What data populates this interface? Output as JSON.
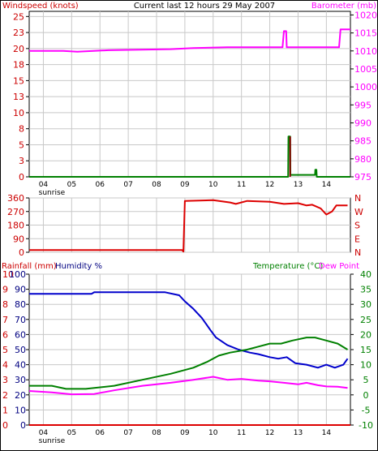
{
  "chart_data": [
    {
      "type": "line",
      "title": "Current last 12 hours 29 May 2007",
      "left_axis_label": "Windspeed (knots)",
      "right_axis_label": "Barometer (mb)",
      "left_ticks": [
        "0",
        "3",
        "5",
        "8",
        "10",
        "13",
        "15",
        "18",
        "20",
        "23",
        "25"
      ],
      "right_ticks": [
        "975",
        "980",
        "985",
        "990",
        "995",
        "1000",
        "1005",
        "1010",
        "1015",
        "1020"
      ],
      "ylim_left": [
        0,
        25.8
      ],
      "ylim_right": [
        975,
        1021
      ],
      "x_ticks": [
        "04",
        "05",
        "06",
        "07",
        "08",
        "09",
        "10",
        "11",
        "12",
        "13",
        "14"
      ],
      "x_note": "sunrise",
      "xlim": [
        3.5,
        14.85
      ],
      "series": [
        {
          "axis": "right",
          "color": "#ff00ff",
          "points": [
            [
              3.5,
              1010
            ],
            [
              4.7,
              1010
            ],
            [
              5.2,
              1009.8
            ],
            [
              6.3,
              1010.2
            ],
            [
              8.5,
              1010.5
            ],
            [
              9.3,
              1010.8
            ],
            [
              10.5,
              1011
            ],
            [
              11.8,
              1011
            ],
            [
              12.45,
              1011
            ],
            [
              12.5,
              1015.5
            ],
            [
              12.58,
              1015.5
            ],
            [
              12.6,
              1011
            ],
            [
              13.5,
              1011
            ],
            [
              14.45,
              1011
            ],
            [
              14.5,
              1016
            ],
            [
              14.85,
              1016
            ]
          ]
        },
        {
          "axis": "left",
          "color": "#008000",
          "points": [
            [
              3.5,
              0
            ],
            [
              12.65,
              0
            ],
            [
              12.66,
              6.3
            ],
            [
              12.72,
              6.3
            ],
            [
              12.73,
              0.3
            ],
            [
              13.6,
              0.3
            ],
            [
              13.61,
              1.1
            ],
            [
              13.65,
              1.1
            ],
            [
              13.66,
              0
            ],
            [
              14.85,
              0
            ]
          ]
        },
        {
          "axis": "left",
          "color": "#880000",
          "points": [
            [
              12.72,
              0
            ],
            [
              12.72,
              6.3
            ]
          ]
        }
      ]
    },
    {
      "type": "line",
      "left_ticks": [
        "0",
        "90",
        "180",
        "270",
        "360"
      ],
      "right_ticks": [
        "N",
        "E",
        "S",
        "W",
        "N"
      ],
      "ylim": [
        0,
        360
      ],
      "xlim": [
        3.5,
        14.85
      ],
      "series": [
        {
          "color": "#dd0000",
          "points": [
            [
              3.5,
              15
            ],
            [
              8.9,
              15
            ],
            [
              8.95,
              5
            ],
            [
              9.0,
              340
            ],
            [
              10.0,
              345
            ],
            [
              10.6,
              330
            ],
            [
              10.8,
              320
            ],
            [
              11.2,
              340
            ],
            [
              12.0,
              335
            ],
            [
              12.5,
              320
            ],
            [
              13.0,
              325
            ],
            [
              13.3,
              310
            ],
            [
              13.5,
              315
            ],
            [
              13.8,
              290
            ],
            [
              14.0,
              250
            ],
            [
              14.2,
              270
            ],
            [
              14.35,
              310
            ],
            [
              14.75,
              310
            ]
          ]
        }
      ]
    },
    {
      "type": "line",
      "labels": [
        "Rainfall (mm)",
        "Humidity %",
        "Temperature (°C)",
        "Dew Point"
      ],
      "rain_ticks": [
        "0",
        "1",
        "2",
        "3",
        "4",
        "5",
        "6",
        "7",
        "8",
        "9",
        "10"
      ],
      "humidity_ticks": [
        "0",
        "10",
        "20",
        "30",
        "40",
        "50",
        "60",
        "70",
        "80",
        "90",
        "100"
      ],
      "temperature_ticks": [
        "-10",
        "-5",
        "0",
        "5",
        "10",
        "15",
        "20",
        "25",
        "30",
        "35",
        "40"
      ],
      "x_ticks": [
        "04",
        "05",
        "06",
        "07",
        "08",
        "09",
        "10",
        "11",
        "12",
        "13",
        "14"
      ],
      "x_note": "sunrise",
      "xlim": [
        3.5,
        14.85
      ],
      "series": [
        {
          "name": "Humidity %",
          "axis": "humidity",
          "color": "#0000cc",
          "points": [
            [
              3.5,
              87
            ],
            [
              5.7,
              87
            ],
            [
              5.8,
              88
            ],
            [
              8.3,
              88
            ],
            [
              8.8,
              86
            ],
            [
              9.0,
              82
            ],
            [
              9.3,
              77
            ],
            [
              9.6,
              71
            ],
            [
              9.9,
              63
            ],
            [
              10.1,
              58
            ],
            [
              10.5,
              53
            ],
            [
              10.9,
              50
            ],
            [
              11.3,
              48
            ],
            [
              11.6,
              47
            ],
            [
              12.0,
              45
            ],
            [
              12.3,
              44
            ],
            [
              12.6,
              45
            ],
            [
              12.9,
              41
            ],
            [
              13.3,
              40
            ],
            [
              13.7,
              38
            ],
            [
              14.0,
              40
            ],
            [
              14.3,
              38
            ],
            [
              14.6,
              40
            ],
            [
              14.75,
              44
            ]
          ]
        },
        {
          "name": "Temperature (°C)",
          "axis": "temperature",
          "color": "#008000",
          "points": [
            [
              3.5,
              3
            ],
            [
              4.3,
              3
            ],
            [
              4.8,
              2
            ],
            [
              5.5,
              2
            ],
            [
              6.5,
              3
            ],
            [
              7.5,
              5
            ],
            [
              8.5,
              7
            ],
            [
              9.3,
              9
            ],
            [
              9.8,
              11
            ],
            [
              10.2,
              13
            ],
            [
              10.6,
              14
            ],
            [
              11.2,
              15
            ],
            [
              11.6,
              16
            ],
            [
              12.0,
              17
            ],
            [
              12.4,
              17
            ],
            [
              12.8,
              18
            ],
            [
              13.3,
              19
            ],
            [
              13.6,
              19
            ],
            [
              14.0,
              18
            ],
            [
              14.4,
              17
            ],
            [
              14.75,
              15
            ]
          ]
        },
        {
          "name": "Dew Point",
          "axis": "temperature",
          "color": "#ff00ff",
          "points": [
            [
              3.5,
              1.3
            ],
            [
              4.3,
              0.8
            ],
            [
              5.0,
              0.2
            ],
            [
              5.8,
              0.3
            ],
            [
              6.5,
              1.5
            ],
            [
              7.5,
              3
            ],
            [
              8.5,
              4
            ],
            [
              9.3,
              5
            ],
            [
              10.0,
              6
            ],
            [
              10.5,
              5
            ],
            [
              11.0,
              5.3
            ],
            [
              11.6,
              4.7
            ],
            [
              12.0,
              4.5
            ],
            [
              12.5,
              4
            ],
            [
              13.0,
              3.5
            ],
            [
              13.3,
              4
            ],
            [
              13.7,
              3.2
            ],
            [
              14.0,
              2.8
            ],
            [
              14.4,
              2.7
            ],
            [
              14.75,
              2.3
            ]
          ]
        },
        {
          "name": "Rainfall (mm)",
          "axis": "rain",
          "color": "#dd0000",
          "points": [
            [
              3.5,
              0
            ],
            [
              14.85,
              0
            ]
          ]
        }
      ]
    }
  ]
}
